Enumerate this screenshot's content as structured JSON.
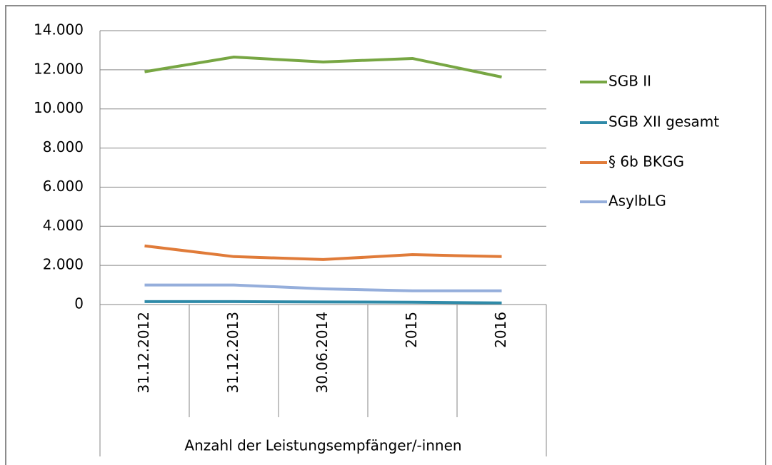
{
  "chart_data": {
    "type": "line",
    "categories": [
      "31.12.2012",
      "31.12.2013",
      "30.06.2014",
      "2015",
      "2016"
    ],
    "category_group_label": "Anzahl der Leistungsempfänger/-innen",
    "series": [
      {
        "name": "SGB II",
        "color": "#77a643",
        "values": [
          11900,
          12650,
          12400,
          12580,
          11630
        ]
      },
      {
        "name": "SGB XII gesamt",
        "color": "#2f8aa8",
        "values": [
          150,
          150,
          130,
          120,
          80
        ]
      },
      {
        "name": "§ 6b BKGG",
        "color": "#e07b39",
        "values": [
          3000,
          2450,
          2300,
          2550,
          2450
        ]
      },
      {
        "name": "AsylbLG",
        "color": "#95aedb",
        "values": [
          1000,
          1000,
          800,
          700,
          700
        ]
      }
    ],
    "ylim": [
      0,
      14000
    ],
    "yticks": [
      0,
      {
        "value": 2000,
        "label": "2.000"
      },
      {
        "value": 4000,
        "label": "4.000"
      },
      {
        "value": 6000,
        "label": "6.000"
      },
      {
        "value": 8000,
        "label": "8.000"
      },
      {
        "value": 10000,
        "label": "10.000"
      },
      {
        "value": 12000,
        "label": "12.000"
      },
      {
        "value": 14000,
        "label": "14.000"
      }
    ],
    "grid": true,
    "legend": "right"
  }
}
